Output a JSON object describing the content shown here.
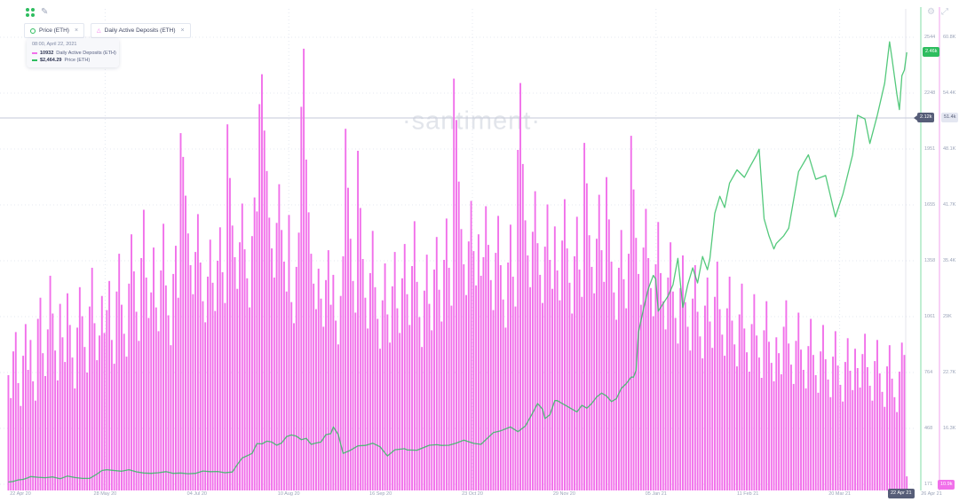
{
  "header": {
    "left_icons": [
      "explorer-icon",
      "edit-icon"
    ],
    "right_icons": [
      "settings-icon",
      "fullscreen-icon"
    ]
  },
  "toolbar": {
    "metrics": [
      {
        "label": "Price (ETH)",
        "close": "×",
        "marker": "circle",
        "color": "#2EBD5F"
      },
      {
        "label": "Daily Active Deposits (ETH)",
        "close": "×",
        "marker": "triangle",
        "color": "#F170EA"
      }
    ]
  },
  "tooltip": {
    "timestamp": "08:00, April 22, 2021",
    "rows": [
      {
        "value": "10932",
        "label": "Daily Active Deposits (ETH)",
        "color": "#F170EA"
      },
      {
        "value": "$2,464.29",
        "label": "Price (ETH)",
        "color": "#2EBD5F"
      }
    ]
  },
  "watermark": "·santiment·",
  "axes": {
    "price": {
      "labels": [
        "2544",
        "2248",
        "1951",
        "1655",
        "1358",
        "1061",
        "764",
        "468",
        "171"
      ],
      "current_badge": "2.46k",
      "color": "#2EBD5F"
    },
    "deposits": {
      "labels": [
        "60.8K",
        "54.4K",
        "48.1K",
        "41.7K",
        "35.4K",
        "29K",
        "22.7K",
        "16.3K",
        "10K"
      ],
      "current_badge": "10.9k",
      "color": "#F170EA"
    },
    "x": {
      "labels": [
        "22 Apr 20",
        "28 May 20",
        "04 Jul 20",
        "10 Aug 20",
        "16 Sep 20",
        "23 Oct 20",
        "29 Nov 20",
        "05 Jan 21",
        "11 Feb 21",
        "20 Mar 21",
        "26 Apr 21"
      ]
    }
  },
  "crosshair": {
    "price_label": "2.12k",
    "deposits_label": "51.4k",
    "date_label": "22 Apr 21"
  },
  "colors": {
    "bars": "#F170EA",
    "line": "#2EBD5F",
    "badge_dark": "#565D78",
    "grid": "#E4E8F1",
    "axis_text": "#9AA3B8",
    "crosshair": "#C5CAD9",
    "green_axis_line": "#A5E6BE",
    "pink_axis_line": "#F6BDF3",
    "watermark": "#E2E5EB"
  },
  "chart_data": {
    "type": "bar+line",
    "title": "",
    "x_start": "22 Apr 2020",
    "x_end": "22 Apr 2021",
    "x_unit": "day",
    "grid": true,
    "legend_position": "top-left",
    "series": [
      {
        "name": "Daily Active Deposits (ETH)",
        "type": "bar",
        "color": "#F170EA",
        "unit": "thousands of deposits",
        "axis_range": [
          10000,
          60800
        ],
        "values_unit": "K",
        "values": [
          22.4,
          19.8,
          25.1,
          27.3,
          21.5,
          18.9,
          24.6,
          28.2,
          23.0,
          26.4,
          21.7,
          19.5,
          28.8,
          31.2,
          24.9,
          22.3,
          27.6,
          33.7,
          29.4,
          25.2,
          21.8,
          30.5,
          26.7,
          23.9,
          31.7,
          28.1,
          24.4,
          20.9,
          27.8,
          32.4,
          29.1,
          25.6,
          22.7,
          30.2,
          34.6,
          28.3,
          24.1,
          26.9,
          31.4,
          27.2,
          29.8,
          33.1,
          26.4,
          23.7,
          31.9,
          36.2,
          30.4,
          27.1,
          24.5,
          32.8,
          38.4,
          34.2,
          29.6,
          26.3,
          35.7,
          41.2,
          33.5,
          28.9,
          31.8,
          36.9,
          30.1,
          27.4,
          34.3,
          39.6,
          32.6,
          29.2,
          25.8,
          33.9,
          37.1,
          31.2,
          49.9,
          47.2,
          42.8,
          38.5,
          34.9,
          31.6,
          36.4,
          40.7,
          35.2,
          30.8,
          28.4,
          33.6,
          37.8,
          32.9,
          29.7,
          35.4,
          39.2,
          34.1,
          30.6,
          50.9,
          44.8,
          39.4,
          35.8,
          32.2,
          37.5,
          41.9,
          36.7,
          33.4,
          30.1,
          38.2,
          42.6,
          41.0,
          53.2,
          56.6,
          50.2,
          45.6,
          40.3,
          36.8,
          33.5,
          39.7,
          44.1,
          38.9,
          35.3,
          31.9,
          40.6,
          30.7,
          28.3,
          34.7,
          38.6,
          52.9,
          59.5,
          46.9,
          40.9,
          36.2,
          32.8,
          29.9,
          34.5,
          31.1,
          27.9,
          33.2,
          36.6,
          30.4,
          33.8,
          28.6,
          25.9,
          31.4,
          35.9,
          50.4,
          43.7,
          37.9,
          33.1,
          29.5,
          47.9,
          41.4,
          35.6,
          31.2,
          27.7,
          34.0,
          38.8,
          32.4,
          28.8,
          25.4,
          30.9,
          35.1,
          29.3,
          26.1,
          32.5,
          36.4,
          30.0,
          27.2,
          33.4,
          37.3,
          31.6,
          28.1,
          34.8,
          39.9,
          33.0,
          29.0,
          25.6,
          32.0,
          36.1,
          30.5,
          27.5,
          34.4,
          38.1,
          32.1,
          28.5,
          35.5,
          40.2,
          34.6,
          30.3,
          56.1,
          51.4,
          44.4,
          39.0,
          35.0,
          31.5,
          37.6,
          42.2,
          36.5,
          32.6,
          38.4,
          33.7,
          35.8,
          41.6,
          37.2,
          33.2,
          29.8,
          36.3,
          40.5,
          34.9,
          31.0,
          27.8,
          35.2,
          39.5,
          33.6,
          30.2,
          48.0,
          55.6,
          46.4,
          40.0,
          36.0,
          32.4,
          38.7,
          43.3,
          37.4,
          33.8,
          30.6,
          37.0,
          41.8,
          35.5,
          32.2,
          39.3,
          34.3,
          30.9,
          37.7,
          42.4,
          36.8,
          32.9,
          29.4,
          35.9,
          40.4,
          34.4,
          31.3,
          48.8,
          44.2,
          38.3,
          34.7,
          31.7,
          37.9,
          42.9,
          36.6,
          33.0,
          44.9,
          40.1,
          35.3,
          31.8,
          28.7,
          34.6,
          38.9,
          33.3,
          30.0,
          36.2,
          49.6,
          43.5,
          38.0,
          33.9,
          30.4,
          36.9,
          41.3,
          35.7,
          32.3,
          29.1,
          35.0,
          39.8,
          34.0,
          30.8,
          27.6,
          33.5,
          37.5,
          31.9,
          28.9,
          26.0,
          32.3,
          36.0,
          30.7,
          27.9,
          25.2,
          31.1,
          34.9,
          29.6,
          26.8,
          24.3,
          30.3,
          33.5,
          28.5,
          25.5,
          31.3,
          35.3,
          29.9,
          27.0,
          24.6,
          30.0,
          33.6,
          28.6,
          25.9,
          23.4,
          29.3,
          32.8,
          27.7,
          25.0,
          22.8,
          28.2,
          31.6,
          26.9,
          24.4,
          22.1,
          27.5,
          30.8,
          26.2,
          23.8,
          21.7,
          26.7,
          24.9,
          22.5,
          27.9,
          30.9,
          26.0,
          23.6,
          21.4,
          26.3,
          29.5,
          25.3,
          23.0,
          20.9,
          25.7,
          28.8,
          24.7,
          22.4,
          20.4,
          25.1,
          28.1,
          24.2,
          21.9,
          19.9,
          24.5,
          27.4,
          23.5,
          21.3,
          19.4,
          23.9,
          26.6,
          22.9,
          20.7,
          25.4,
          23.2,
          21.0,
          24.8,
          27.1,
          23.3,
          21.2,
          19.5,
          24.0,
          26.4,
          22.6,
          20.5,
          18.8,
          23.4,
          25.8,
          22.0,
          19.9,
          18.2,
          22.8,
          26.1,
          24.7,
          10.9
        ]
      },
      {
        "name": "Price (ETH)",
        "type": "line",
        "color": "#2EBD5F",
        "unit": "USD",
        "axis_range": [
          171,
          2544
        ],
        "points": [
          [
            0,
            183
          ],
          [
            2,
            186
          ],
          [
            4,
            194
          ],
          [
            6,
            197
          ],
          [
            8,
            206
          ],
          [
            9,
            212
          ],
          [
            12,
            208
          ],
          [
            15,
            206
          ],
          [
            18,
            210
          ],
          [
            21,
            200
          ],
          [
            24,
            215
          ],
          [
            27,
            207
          ],
          [
            30,
            202
          ],
          [
            33,
            202
          ],
          [
            36,
            225
          ],
          [
            38,
            244
          ],
          [
            40,
            248
          ],
          [
            43,
            244
          ],
          [
            46,
            240
          ],
          [
            49,
            248
          ],
          [
            52,
            237
          ],
          [
            55,
            231
          ],
          [
            58,
            229
          ],
          [
            61,
            232
          ],
          [
            64,
            238
          ],
          [
            67,
            229
          ],
          [
            70,
            231
          ],
          [
            73,
            227
          ],
          [
            76,
            229
          ],
          [
            79,
            241
          ],
          [
            82,
            238
          ],
          [
            85,
            239
          ],
          [
            88,
            232
          ],
          [
            91,
            236
          ],
          [
            93,
            275
          ],
          [
            95,
            311
          ],
          [
            97,
            322
          ],
          [
            99,
            335
          ],
          [
            101,
            387
          ],
          [
            103,
            385
          ],
          [
            105,
            400
          ],
          [
            107,
            395
          ],
          [
            109,
            378
          ],
          [
            111,
            390
          ],
          [
            113,
            424
          ],
          [
            115,
            433
          ],
          [
            117,
            426
          ],
          [
            119,
            408
          ],
          [
            121,
            415
          ],
          [
            123,
            383
          ],
          [
            125,
            390
          ],
          [
            127,
            395
          ],
          [
            129,
            434
          ],
          [
            131,
            440
          ],
          [
            132,
            475
          ],
          [
            134,
            435
          ],
          [
            136,
            335
          ],
          [
            139,
            352
          ],
          [
            142,
            375
          ],
          [
            145,
            377
          ],
          [
            148,
            389
          ],
          [
            151,
            370
          ],
          [
            154,
            321
          ],
          [
            157,
            354
          ],
          [
            161,
            360
          ],
          [
            162,
            353
          ],
          [
            166,
            352
          ],
          [
            171,
            378
          ],
          [
            174,
            381
          ],
          [
            176,
            377
          ],
          [
            179,
            378
          ],
          [
            182,
            390
          ],
          [
            185,
            405
          ],
          [
            189,
            388
          ],
          [
            192,
            383
          ],
          [
            193,
            395
          ],
          [
            197,
            445
          ],
          [
            200,
            455
          ],
          [
            204,
            475
          ],
          [
            207,
            450
          ],
          [
            210,
            480
          ],
          [
            213,
            550
          ],
          [
            215,
            600
          ],
          [
            217,
            570
          ],
          [
            218,
            520
          ],
          [
            220,
            540
          ],
          [
            222,
            615
          ],
          [
            223,
            615
          ],
          [
            225,
            600
          ],
          [
            227,
            585
          ],
          [
            229,
            570
          ],
          [
            231,
            555
          ],
          [
            233,
            590
          ],
          [
            235,
            575
          ],
          [
            237,
            600
          ],
          [
            239,
            635
          ],
          [
            241,
            655
          ],
          [
            243,
            640
          ],
          [
            245,
            610
          ],
          [
            247,
            625
          ],
          [
            249,
            680
          ],
          [
            251,
            705
          ],
          [
            253,
            740
          ],
          [
            254,
            740
          ],
          [
            255,
            775
          ],
          [
            256,
            980
          ],
          [
            258,
            1100
          ],
          [
            260,
            1210
          ],
          [
            262,
            1280
          ],
          [
            263,
            1260
          ],
          [
            264,
            1090
          ],
          [
            266,
            1130
          ],
          [
            268,
            1170
          ],
          [
            270,
            1230
          ],
          [
            272,
            1370
          ],
          [
            274,
            1110
          ],
          [
            276,
            1230
          ],
          [
            278,
            1320
          ],
          [
            280,
            1240
          ],
          [
            282,
            1380
          ],
          [
            284,
            1310
          ],
          [
            285,
            1370
          ],
          [
            287,
            1610
          ],
          [
            289,
            1700
          ],
          [
            291,
            1640
          ],
          [
            293,
            1770
          ],
          [
            296,
            1840
          ],
          [
            299,
            1800
          ],
          [
            301,
            1850
          ],
          [
            304,
            1920
          ],
          [
            305,
            1950
          ],
          [
            307,
            1580
          ],
          [
            309,
            1490
          ],
          [
            311,
            1420
          ],
          [
            312,
            1450
          ],
          [
            315,
            1490
          ],
          [
            317,
            1530
          ],
          [
            321,
            1830
          ],
          [
            325,
            1920
          ],
          [
            328,
            1790
          ],
          [
            332,
            1810
          ],
          [
            336,
            1590
          ],
          [
            339,
            1710
          ],
          [
            343,
            1920
          ],
          [
            345,
            2130
          ],
          [
            348,
            2110
          ],
          [
            350,
            1980
          ],
          [
            353,
            2130
          ],
          [
            356,
            2300
          ],
          [
            358,
            2520
          ],
          [
            359,
            2430
          ],
          [
            361,
            2240
          ],
          [
            362,
            2160
          ],
          [
            363,
            2340
          ],
          [
            364,
            2370
          ],
          [
            365,
            2464
          ]
        ]
      }
    ]
  }
}
